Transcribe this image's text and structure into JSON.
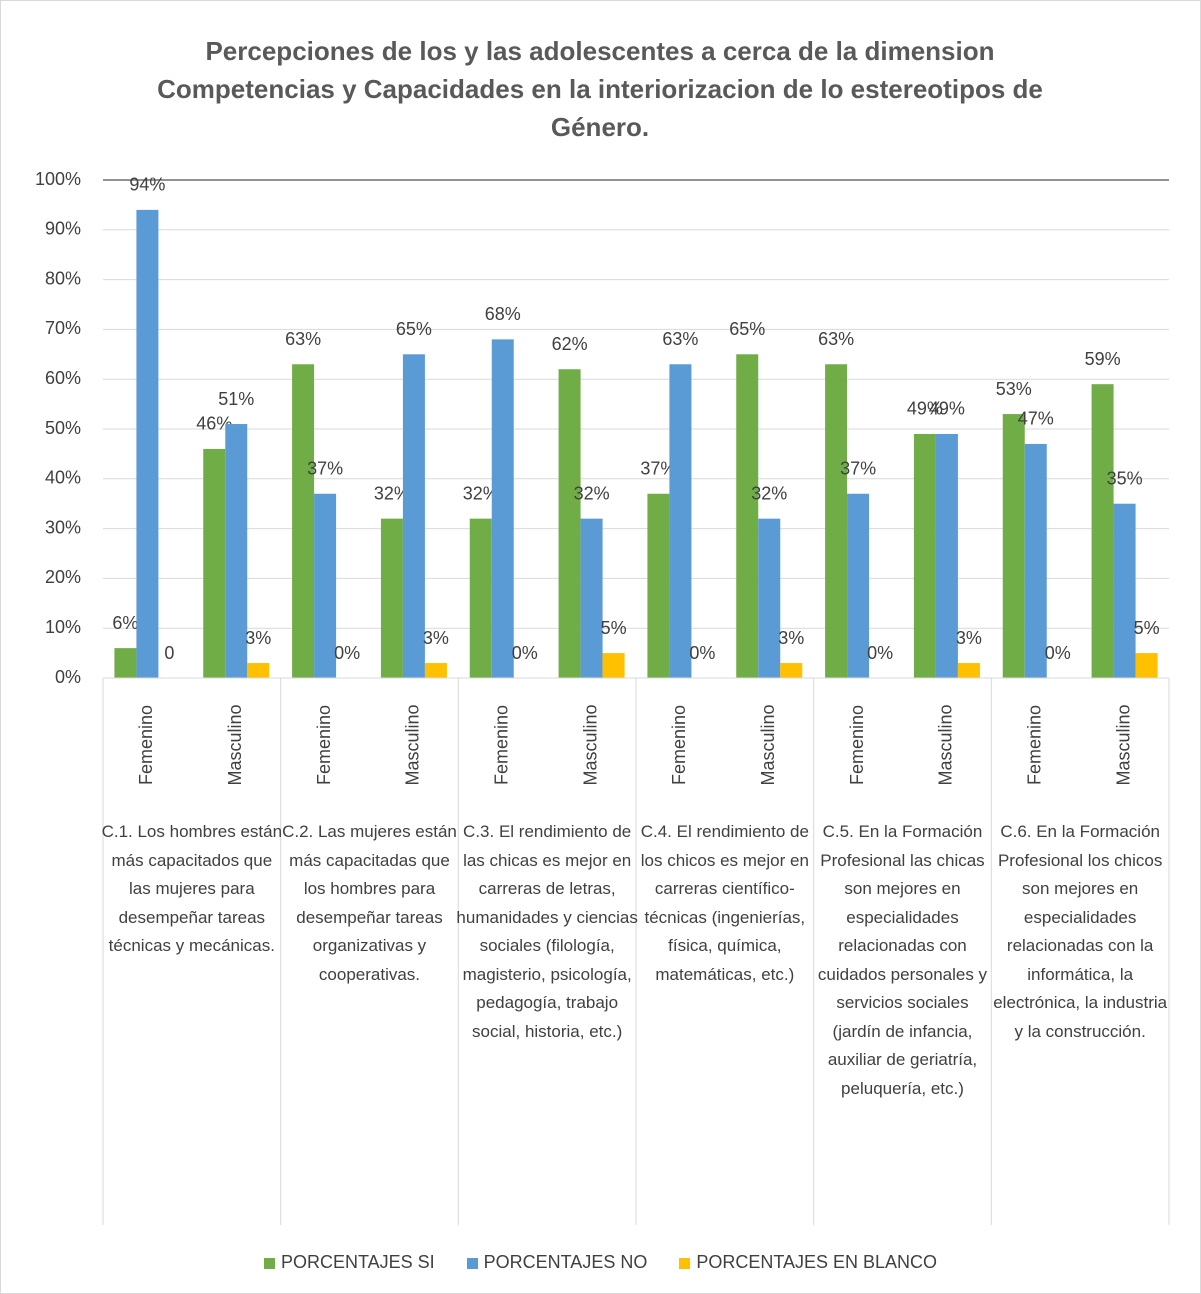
{
  "chart_data": {
    "type": "bar",
    "title": "Percepciones de los y las adolescentes a cerca de la dimension Competencias y Capacidades en la interiorizacion de lo estereotipos de Género.",
    "categories": [
      "Femenino",
      "Masculino",
      "Femenino",
      "Masculino",
      "Femenino",
      "Masculino",
      "Femenino",
      "Masculino",
      "Femenino",
      "Masculino",
      "Femenino",
      "Masculino"
    ],
    "groups": [
      "C.1. Los hombres están más capacitados que las mujeres para desempeñar tareas técnicas y mecánicas.",
      "C.2. Las mujeres están más capacitadas que los hombres para desempeñar tareas organizativas y cooperativas.",
      "C.3. El rendimiento de las chicas es mejor en carreras de letras, humanidades y ciencias sociales (filología, magisterio, psicología, pedagogía, trabajo social, historia, etc.)",
      "C.4. El rendimiento de los chicos es mejor en carreras científico-técnicas (ingenierías, física, química, matemáticas, etc.)",
      "C.5. En la Formación Profesional las chicas son mejores en especialidades relacionadas con cuidados personales y servicios sociales (jardín de infancia, auxiliar de geriatría, peluquería, etc.)",
      "C.6. En la Formación Profesional los chicos son mejores en especialidades relacionadas con la informática, la electrónica, la industria  y  la construcción."
    ],
    "series": [
      {
        "name": "PORCENTAJES SI",
        "color": "#70ad47",
        "values": [
          6,
          46,
          63,
          32,
          32,
          62,
          37,
          65,
          63,
          49,
          53,
          59
        ],
        "value_labels": [
          "6%",
          "46%",
          "63%",
          "32%",
          "32%",
          "62%",
          "37%",
          "65%",
          "63%",
          "49%",
          "53%",
          "59%"
        ]
      },
      {
        "name": "PORCENTAJES NO",
        "color": "#5b9bd5",
        "values": [
          94,
          51,
          37,
          65,
          68,
          32,
          63,
          32,
          37,
          49,
          47,
          35
        ],
        "value_labels": [
          "94%",
          "51%",
          "37%",
          "65%",
          "68%",
          "32%",
          "63%",
          "32%",
          "37%",
          "49%",
          "47%",
          "35%"
        ]
      },
      {
        "name": "PORCENTAJES EN BLANCO",
        "color": "#ffc000",
        "values": [
          0,
          3,
          0,
          3,
          0,
          5,
          0,
          3,
          0,
          3,
          0,
          5
        ],
        "value_labels": [
          "0",
          "3%",
          "0%",
          "3%",
          "0%",
          "5%",
          "0%",
          "3%",
          "0%",
          "3%",
          "0%",
          "5%"
        ]
      }
    ],
    "ylim": [
      0,
      100
    ],
    "yticks": [
      {
        "value": 0,
        "label": "0%"
      },
      {
        "value": 10,
        "label": "10%"
      },
      {
        "value": 20,
        "label": "20%"
      },
      {
        "value": 30,
        "label": "30%"
      },
      {
        "value": 40,
        "label": "40%"
      },
      {
        "value": 50,
        "label": "50%"
      },
      {
        "value": 60,
        "label": "60%"
      },
      {
        "value": 70,
        "label": "70%"
      },
      {
        "value": 80,
        "label": "80%"
      },
      {
        "value": 90,
        "label": "90%"
      },
      {
        "value": 100,
        "label": "100%"
      }
    ],
    "grid": true,
    "legend": "bottom"
  }
}
